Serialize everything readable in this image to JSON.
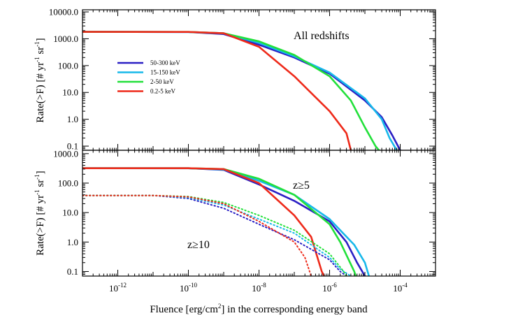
{
  "chart_data": {
    "type": "line",
    "xlabel": "Fluence [erg/cm²] in the corresponding energy band",
    "x_log": true,
    "xlim": [
      1e-13,
      0.001
    ],
    "x_tick_labels": [
      "10-12",
      "10-10",
      "10-8",
      "10-6",
      "10-4"
    ],
    "ylabel": "Rate(>F) [# yr⁻¹ sr⁻¹]",
    "legend": {
      "placement": "upper-left",
      "entries": [
        "50-300 keV",
        "15-150 keV",
        "2-50 keV",
        "0.2-5 keV"
      ]
    },
    "colors": {
      "50-300 keV": "#2a1fc4",
      "15-150 keV": "#17b8ea",
      "2-50 keV": "#22e03a",
      "0.2-5 keV": "#ee2a1a"
    },
    "panels": [
      {
        "id": "top",
        "annotation": "All redshifts",
        "y_log": true,
        "ylim": [
          0.07,
          12000
        ],
        "y_tick_labels": [
          "10000.0",
          "1000.0",
          "100.0",
          "10.0",
          "1.0",
          "0.1"
        ],
        "series": [
          {
            "name": "50-300 keV",
            "line": "solid",
            "points": [
              [
                1e-13,
                1800
              ],
              [
                1e-10,
                1780
              ],
              [
                1e-09,
                1500
              ],
              [
                1e-08,
                600
              ],
              [
                1e-07,
                200
              ],
              [
                1e-06,
                50
              ],
              [
                1e-05,
                5
              ],
              [
                3e-05,
                1.2
              ],
              [
                6e-05,
                0.25
              ],
              [
                0.0001,
                0.07
              ]
            ]
          },
          {
            "name": "15-150 keV",
            "line": "solid",
            "points": [
              [
                1e-13,
                1800
              ],
              [
                1e-10,
                1780
              ],
              [
                1e-09,
                1600
              ],
              [
                1e-08,
                700
              ],
              [
                1e-07,
                220
              ],
              [
                1e-06,
                55
              ],
              [
                1e-05,
                6
              ],
              [
                3e-05,
                1.0
              ],
              [
                5e-05,
                0.2
              ],
              [
                8e-05,
                0.07
              ]
            ]
          },
          {
            "name": "2-50 keV",
            "line": "solid",
            "points": [
              [
                1e-13,
                1800
              ],
              [
                1e-10,
                1790
              ],
              [
                1e-09,
                1600
              ],
              [
                1e-08,
                800
              ],
              [
                1e-07,
                250
              ],
              [
                1e-06,
                40
              ],
              [
                4e-06,
                5
              ],
              [
                1e-05,
                0.5
              ],
              [
                2e-05,
                0.1
              ],
              [
                2.5e-05,
                0.07
              ]
            ]
          },
          {
            "name": "0.2-5 keV",
            "line": "solid",
            "points": [
              [
                1e-13,
                1800
              ],
              [
                1e-10,
                1790
              ],
              [
                1e-09,
                1600
              ],
              [
                1e-08,
                500
              ],
              [
                3e-08,
                150
              ],
              [
                1e-07,
                40
              ],
              [
                1e-06,
                2
              ],
              [
                3e-06,
                0.3
              ],
              [
                4e-06,
                0.07
              ]
            ]
          }
        ]
      },
      {
        "id": "bottom",
        "annotation": "z≥5",
        "annotation2": "z≥10",
        "y_log": true,
        "ylim": [
          0.07,
          1300
        ],
        "y_tick_labels": [
          "1000.0",
          "100.0",
          "10.0",
          "1.0",
          "0.1"
        ],
        "series": [
          {
            "name": "50-300 keV (z≥5)",
            "line": "solid",
            "points": [
              [
                1e-13,
                320
              ],
              [
                1e-10,
                320
              ],
              [
                1e-09,
                280
              ],
              [
                1e-08,
                90
              ],
              [
                1e-07,
                25
              ],
              [
                1e-06,
                5
              ],
              [
                3e-06,
                1
              ],
              [
                6e-06,
                0.2
              ],
              [
                1e-05,
                0.07
              ]
            ]
          },
          {
            "name": "15-150 keV (z≥5)",
            "line": "solid",
            "points": [
              [
                1e-13,
                320
              ],
              [
                1e-10,
                318
              ],
              [
                1e-09,
                290
              ],
              [
                1e-08,
                120
              ],
              [
                1e-07,
                40
              ],
              [
                1e-06,
                6
              ],
              [
                5e-06,
                0.8
              ],
              [
                1e-05,
                0.2
              ],
              [
                1.3e-05,
                0.07
              ]
            ]
          },
          {
            "name": "2-50 keV (z≥5)",
            "line": "solid",
            "points": [
              [
                1e-13,
                320
              ],
              [
                1e-10,
                320
              ],
              [
                1e-09,
                300
              ],
              [
                1e-08,
                140
              ],
              [
                1e-07,
                40
              ],
              [
                1e-06,
                4
              ],
              [
                2e-06,
                1
              ],
              [
                5e-06,
                0.1
              ],
              [
                5.5e-06,
                0.07
              ]
            ]
          },
          {
            "name": "0.2-5 keV (z≥5)",
            "line": "solid",
            "points": [
              [
                1e-13,
                320
              ],
              [
                1e-10,
                320
              ],
              [
                1e-09,
                300
              ],
              [
                1e-08,
                100
              ],
              [
                3e-08,
                30
              ],
              [
                1e-07,
                8
              ],
              [
                3e-07,
                1.5
              ],
              [
                6e-07,
                0.1
              ],
              [
                7e-07,
                0.07
              ]
            ]
          },
          {
            "name": "50-300 keV (z≥10)",
            "line": "dotted",
            "points": [
              [
                1e-13,
                38
              ],
              [
                1e-11,
                38
              ],
              [
                1e-10,
                30
              ],
              [
                1e-09,
                14
              ],
              [
                1e-08,
                4
              ],
              [
                1e-07,
                1.2
              ],
              [
                1e-06,
                0.25
              ],
              [
                2e-06,
                0.1
              ],
              [
                3e-06,
                0.07
              ]
            ]
          },
          {
            "name": "15-150 keV (z≥10)",
            "line": "dotted",
            "points": [
              [
                1e-13,
                38
              ],
              [
                1e-11,
                38
              ],
              [
                1e-10,
                32
              ],
              [
                1e-09,
                18
              ],
              [
                1e-08,
                6
              ],
              [
                1e-07,
                2
              ],
              [
                1e-06,
                0.3
              ],
              [
                2e-06,
                0.12
              ],
              [
                4e-06,
                0.07
              ]
            ]
          },
          {
            "name": "2-50 keV (z≥10)",
            "line": "dotted",
            "points": [
              [
                1e-13,
                38
              ],
              [
                1e-11,
                38
              ],
              [
                1e-10,
                35
              ],
              [
                1e-09,
                22
              ],
              [
                1e-08,
                8
              ],
              [
                1e-07,
                2.5
              ],
              [
                1e-06,
                0.4
              ],
              [
                2.5e-06,
                0.1
              ],
              [
                3e-06,
                0.07
              ]
            ]
          },
          {
            "name": "0.2-5 keV (z≥10)",
            "line": "dotted",
            "points": [
              [
                1e-13,
                38
              ],
              [
                1e-11,
                38
              ],
              [
                1e-10,
                34
              ],
              [
                1e-09,
                20
              ],
              [
                1e-08,
                5
              ],
              [
                1e-07,
                1
              ],
              [
                2e-07,
                0.3
              ],
              [
                3e-07,
                0.07
              ]
            ]
          }
        ]
      }
    ]
  }
}
